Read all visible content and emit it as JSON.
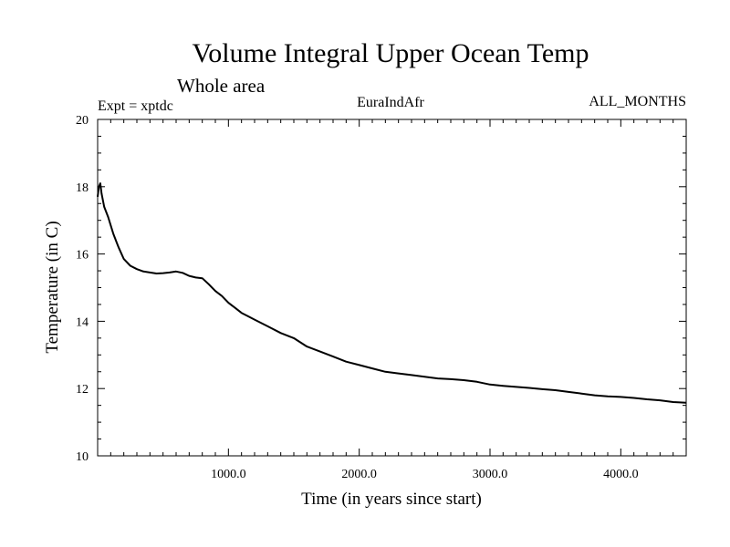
{
  "chart_data": {
    "type": "line",
    "title": "Volume Integral Upper Ocean Temp",
    "subtitle": "Whole area",
    "header_left": "Expt = xptdc",
    "header_center": "EuraIndAfr",
    "header_right": "ALL_MONTHS",
    "xlabel": "Time (in years since start)",
    "ylabel": "Temperature (in C)",
    "xlim": [
      0,
      4500
    ],
    "ylim": [
      10,
      20
    ],
    "x_tick_labels": [
      "1000.0",
      "2000.0",
      "3000.0",
      "4000.0"
    ],
    "y_tick_labels": [
      "10",
      "12",
      "14",
      "16",
      "18",
      "20"
    ],
    "grid": false,
    "line_color": "#000000",
    "series": [
      {
        "x": [
          0,
          10,
          20,
          30,
          50,
          80,
          120,
          160,
          200,
          250,
          300,
          350,
          400,
          450,
          500,
          550,
          600,
          650,
          700,
          750,
          800,
          850,
          900,
          950,
          1000,
          1050,
          1100,
          1150,
          1200,
          1300,
          1400,
          1500,
          1600,
          1700,
          1800,
          1900,
          2000,
          2100,
          2200,
          2300,
          2400,
          2500,
          2600,
          2700,
          2800,
          2900,
          3000,
          3100,
          3200,
          3300,
          3400,
          3500,
          3600,
          3700,
          3800,
          3900,
          4000,
          4100,
          4200,
          4300,
          4400,
          4500
        ],
        "y": [
          17.7,
          18.0,
          18.1,
          17.8,
          17.4,
          17.1,
          16.6,
          16.2,
          15.85,
          15.65,
          15.55,
          15.48,
          15.45,
          15.42,
          15.43,
          15.45,
          15.48,
          15.44,
          15.35,
          15.3,
          15.28,
          15.1,
          14.9,
          14.75,
          14.55,
          14.4,
          14.25,
          14.15,
          14.05,
          13.85,
          13.65,
          13.5,
          13.25,
          13.1,
          12.95,
          12.8,
          12.7,
          12.6,
          12.5,
          12.45,
          12.4,
          12.35,
          12.3,
          12.28,
          12.25,
          12.2,
          12.12,
          12.08,
          12.05,
          12.02,
          11.98,
          11.95,
          11.9,
          11.85,
          11.8,
          11.77,
          11.75,
          11.72,
          11.68,
          11.65,
          11.6,
          11.58
        ]
      }
    ]
  }
}
